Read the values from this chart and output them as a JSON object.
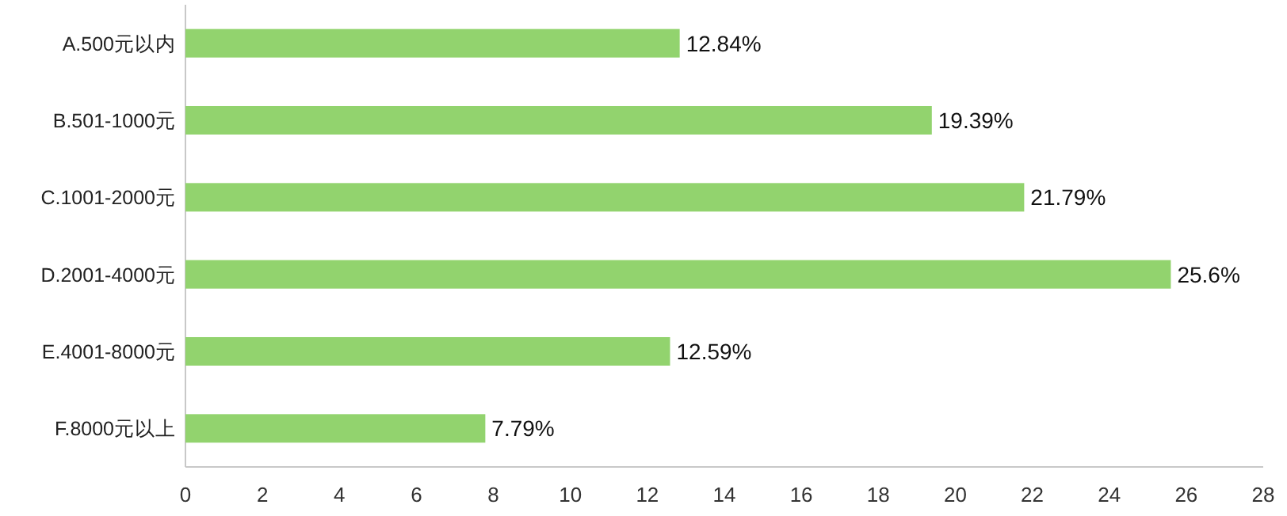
{
  "chart_data": {
    "type": "bar",
    "orientation": "horizontal",
    "categories": [
      "A.500元以内",
      "B.501-1000元",
      "C.1001-2000元",
      "D.2001-4000元",
      "E.4001-8000元",
      "F.8000元以上"
    ],
    "values": [
      12.84,
      19.39,
      21.79,
      25.6,
      12.59,
      7.79
    ],
    "value_labels": [
      "12.84%",
      "19.39%",
      "21.79%",
      "25.6%",
      "12.59%",
      "7.79%"
    ],
    "color": "#92d36e",
    "xlim": [
      0,
      28
    ],
    "xticks": [
      0,
      2,
      4,
      6,
      8,
      10,
      12,
      14,
      16,
      18,
      20,
      22,
      24,
      26,
      28
    ]
  }
}
